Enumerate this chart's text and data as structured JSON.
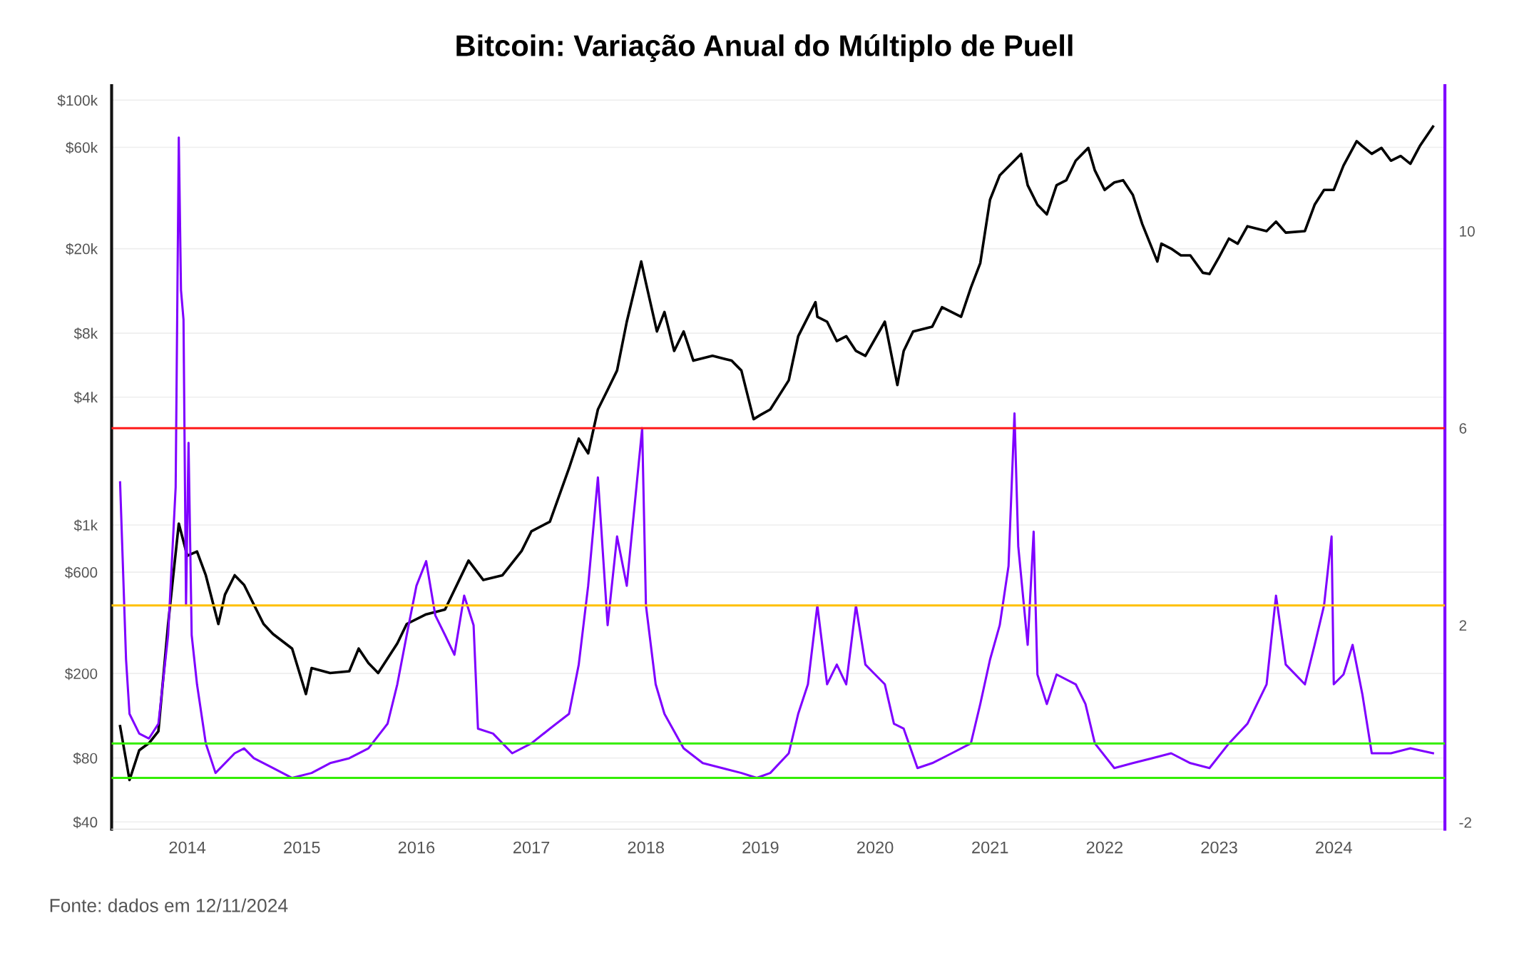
{
  "chart_data": {
    "type": "line",
    "title": "Bitcoin: Variação Anual do Múltiplo de Puell",
    "annotations": [
      "Fonte: dados em 12/11/2024"
    ],
    "series": [
      {
        "color": "#000000",
        "axis": "y",
        "x": [
          "2013-06-01",
          "2013-07-01",
          "2013-08-01",
          "2013-09-01",
          "2013-10-01",
          "2013-11-01",
          "2013-12-05",
          "2014-01-01",
          "2014-02-01",
          "2014-03-01",
          "2014-04-10",
          "2014-05-01",
          "2014-06-01",
          "2014-07-01",
          "2014-08-01",
          "2014-09-01",
          "2014-10-01",
          "2014-12-01",
          "2015-01-14",
          "2015-02-01",
          "2015-04-01",
          "2015-06-01",
          "2015-07-01",
          "2015-08-01",
          "2015-09-01",
          "2015-11-01",
          "2015-12-01",
          "2016-02-01",
          "2016-04-01",
          "2016-06-15",
          "2016-08-01",
          "2016-10-01",
          "2016-12-01",
          "2017-01-01",
          "2017-03-01",
          "2017-05-01",
          "2017-06-01",
          "2017-07-01",
          "2017-08-01",
          "2017-09-01",
          "2017-10-01",
          "2017-11-01",
          "2017-12-17",
          "2018-01-01",
          "2018-02-05",
          "2018-03-01",
          "2018-04-01",
          "2018-05-01",
          "2018-06-01",
          "2018-08-01",
          "2018-10-01",
          "2018-11-01",
          "2018-12-10",
          "2019-01-01",
          "2019-02-01",
          "2019-04-01",
          "2019-05-01",
          "2019-06-25",
          "2019-07-01",
          "2019-08-01",
          "2019-09-01",
          "2019-10-01",
          "2019-11-01",
          "2019-12-01",
          "2020-02-01",
          "2020-03-12",
          "2020-04-01",
          "2020-05-01",
          "2020-07-01",
          "2020-08-01",
          "2020-10-01",
          "2020-11-01",
          "2020-12-01",
          "2021-01-01",
          "2021-02-01",
          "2021-04-10",
          "2021-05-01",
          "2021-06-01",
          "2021-07-01",
          "2021-08-01",
          "2021-09-01",
          "2021-10-01",
          "2021-11-10",
          "2021-12-01",
          "2022-01-01",
          "2022-02-01",
          "2022-03-01",
          "2022-04-01",
          "2022-05-01",
          "2022-06-18",
          "2022-07-01",
          "2022-08-01",
          "2022-09-01",
          "2022-10-01",
          "2022-11-10",
          "2022-12-01",
          "2023-01-01",
          "2023-02-01",
          "2023-03-01",
          "2023-04-01",
          "2023-06-01",
          "2023-07-01",
          "2023-08-01",
          "2023-10-01",
          "2023-11-01",
          "2023-12-01",
          "2024-01-01",
          "2024-02-01",
          "2024-03-14",
          "2024-04-01",
          "2024-05-01",
          "2024-06-01",
          "2024-07-01",
          "2024-08-01",
          "2024-09-01",
          "2024-10-01",
          "2024-11-12"
        ],
        "values": [
          113,
          63,
          87,
          94,
          107,
          342,
          1016,
          716,
          750,
          580,
          342,
          470,
          580,
          522,
          422,
          342,
          307,
          262,
          160,
          212,
          201,
          205,
          262,
          224,
          201,
          277,
          342,
          380,
          400,
          680,
          551,
          580,
          755,
          933,
          1037,
          1850,
          2550,
          2175,
          3500,
          4330,
          5340,
          9060,
          17400,
          13800,
          8150,
          10070,
          6600,
          8150,
          5940,
          6260,
          5940,
          5340,
          3150,
          3300,
          3500,
          4800,
          7740,
          11200,
          9560,
          9060,
          7340,
          7740,
          6600,
          6260,
          9060,
          4560,
          6600,
          8150,
          8590,
          10600,
          9560,
          13100,
          17100,
          34000,
          44300,
          55900,
          39800,
          32200,
          29000,
          39800,
          42000,
          51900,
          59600,
          46700,
          37800,
          41000,
          42000,
          35800,
          26100,
          17400,
          21100,
          20000,
          18600,
          18600,
          15400,
          15200,
          18300,
          22300,
          21100,
          25500,
          24200,
          26800,
          23800,
          24200,
          32200,
          37800,
          37800,
          49200,
          64100,
          60800,
          55900,
          59600,
          51900,
          54600,
          50200,
          60800,
          75100
        ]
      },
      {
        "color": "#7f00ff",
        "axis": "y2",
        "x": [
          "2013-06-01",
          "2013-06-20",
          "2013-07-01",
          "2013-08-01",
          "2013-09-01",
          "2013-10-01",
          "2013-11-01",
          "2013-11-25",
          "2013-12-05",
          "2013-12-12",
          "2013-12-20",
          "2013-12-28",
          "2014-01-05",
          "2014-01-15",
          "2014-02-01",
          "2014-03-01",
          "2014-04-01",
          "2014-06-01",
          "2014-07-01",
          "2014-08-01",
          "2014-10-01",
          "2014-12-01",
          "2015-02-01",
          "2015-04-01",
          "2015-06-01",
          "2015-08-01",
          "2015-10-01",
          "2015-11-01",
          "2015-12-01",
          "2016-01-01",
          "2016-02-01",
          "2016-03-01",
          "2016-04-01",
          "2016-05-01",
          "2016-06-01",
          "2016-07-01",
          "2016-07-15",
          "2016-09-01",
          "2016-11-01",
          "2017-01-01",
          "2017-03-01",
          "2017-05-01",
          "2017-06-01",
          "2017-07-01",
          "2017-08-01",
          "2017-09-01",
          "2017-10-01",
          "2017-11-01",
          "2017-12-20",
          "2018-01-01",
          "2018-02-01",
          "2018-03-01",
          "2018-05-01",
          "2018-07-01",
          "2018-09-01",
          "2018-11-01",
          "2018-12-20",
          "2019-02-01",
          "2019-04-01",
          "2019-05-01",
          "2019-06-01",
          "2019-07-01",
          "2019-08-01",
          "2019-09-01",
          "2019-10-01",
          "2019-11-01",
          "2019-12-01",
          "2020-01-01",
          "2020-02-01",
          "2020-03-01",
          "2020-04-01",
          "2020-05-15",
          "2020-07-01",
          "2020-09-01",
          "2020-11-01",
          "2020-12-01",
          "2021-01-01",
          "2021-02-01",
          "2021-03-01",
          "2021-03-20",
          "2021-04-01",
          "2021-05-01",
          "2021-05-20",
          "2021-06-01",
          "2021-07-01",
          "2021-08-01",
          "2021-10-01",
          "2021-11-01",
          "2021-12-01",
          "2022-02-01",
          "2022-04-01",
          "2022-06-01",
          "2022-08-01",
          "2022-10-01",
          "2022-12-01",
          "2023-02-01",
          "2023-04-01",
          "2023-06-01",
          "2023-07-01",
          "2023-08-01",
          "2023-10-01",
          "2023-11-01",
          "2023-12-01",
          "2023-12-25",
          "2024-01-01",
          "2024-02-01",
          "2024-03-01",
          "2024-04-01",
          "2024-05-01",
          "2024-07-01",
          "2024-09-01",
          "2024-11-12"
        ],
        "values": [
          4.9,
          1.3,
          0.2,
          -0.2,
          -0.3,
          0.0,
          1.8,
          4.8,
          11.9,
          8.8,
          8.2,
          2.4,
          5.7,
          1.8,
          0.8,
          -0.4,
          -1.0,
          -0.6,
          -0.5,
          -0.7,
          -0.9,
          -1.1,
          -1.0,
          -0.8,
          -0.7,
          -0.5,
          0.0,
          0.8,
          1.8,
          2.8,
          3.3,
          2.2,
          1.8,
          1.4,
          2.6,
          2.0,
          -0.1,
          -0.2,
          -0.6,
          -0.4,
          -0.1,
          0.2,
          1.2,
          2.8,
          5.0,
          2.0,
          3.8,
          2.8,
          6.0,
          2.4,
          0.8,
          0.2,
          -0.5,
          -0.8,
          -0.9,
          -1.0,
          -1.1,
          -1.0,
          -0.6,
          0.2,
          0.8,
          2.4,
          0.8,
          1.2,
          0.8,
          2.4,
          1.2,
          1.0,
          0.8,
          0.0,
          -0.1,
          -0.9,
          -0.8,
          -0.6,
          -0.4,
          0.4,
          1.3,
          2.0,
          3.2,
          6.3,
          3.6,
          1.6,
          3.9,
          1.0,
          0.4,
          1.0,
          0.8,
          0.4,
          -0.4,
          -0.9,
          -0.8,
          -0.7,
          -0.6,
          -0.8,
          -0.9,
          -0.4,
          0.0,
          0.8,
          2.6,
          1.2,
          0.8,
          1.6,
          2.4,
          3.8,
          0.8,
          1.0,
          1.6,
          0.6,
          -0.6,
          -0.6,
          -0.5,
          -0.6
        ]
      }
    ],
    "log": "y",
    "xlim": [
      "2013-05-05",
      "2024-12-20"
    ],
    "xticks": [
      "2014",
      "2015",
      "2016",
      "2017",
      "2018",
      "2019",
      "2020",
      "2021",
      "2022",
      "2023",
      "2024"
    ],
    "ylim": [
      37,
      117000
    ],
    "yticks": [
      {
        "value": 40,
        "label": "$40"
      },
      {
        "value": 80,
        "label": "$80"
      },
      {
        "value": 200,
        "label": "$200"
      },
      {
        "value": 600,
        "label": "$600"
      },
      {
        "value": 1000,
        "label": "$1k"
      },
      {
        "value": 4000,
        "label": "$4k"
      },
      {
        "value": 8000,
        "label": "$8k"
      },
      {
        "value": 20000,
        "label": "$20k"
      },
      {
        "value": 60000,
        "label": "$60k"
      },
      {
        "value": 100000,
        "label": "$100k"
      }
    ],
    "y2lim": [
      -2.14,
      12.95
    ],
    "y2ticks": [
      -2,
      2,
      6,
      10
    ],
    "ref_lines": [
      {
        "axis": "y2",
        "value": 6,
        "color": "#ff1a1a"
      },
      {
        "axis": "y2",
        "value": 2.4,
        "color": "#ffc000"
      },
      {
        "axis": "y2",
        "value": -0.4,
        "color": "#33ee00"
      },
      {
        "axis": "y2",
        "value": -1.1,
        "color": "#33ee00"
      }
    ],
    "grid": "y",
    "line_style": "solid",
    "marker": "none",
    "legend": false
  }
}
